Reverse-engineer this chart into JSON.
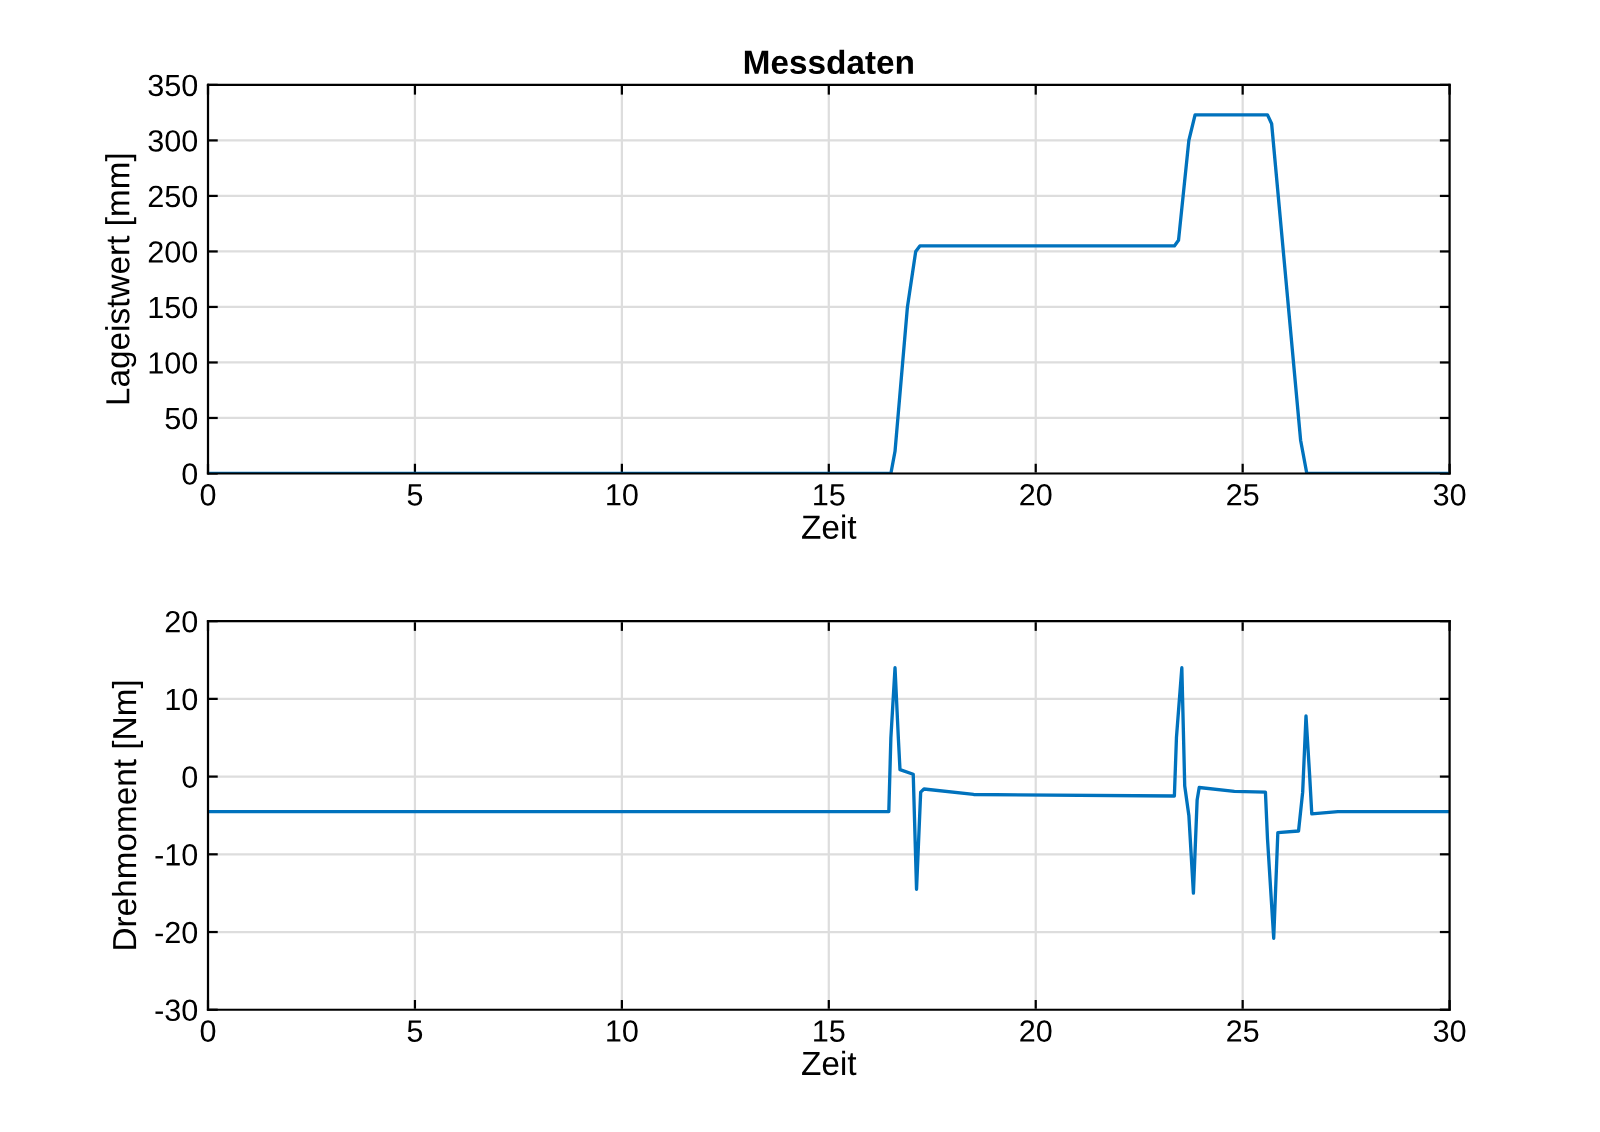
{
  "chart_data": [
    {
      "type": "line",
      "title": "Messdaten",
      "xlabel": "Zeit",
      "ylabel": "Lageistwert [mm]",
      "xlim": [
        0,
        30
      ],
      "xticks": [
        0,
        5,
        10,
        15,
        20,
        25,
        30
      ],
      "ylim": [
        0,
        350
      ],
      "yticks": [
        0,
        50,
        100,
        150,
        200,
        250,
        300,
        350
      ],
      "grid": true,
      "series": [
        {
          "color": "#0072bd",
          "x": [
            0,
            16.5,
            16.6,
            16.9,
            17.1,
            17.2,
            23.35,
            23.45,
            23.7,
            23.85,
            25.6,
            25.7,
            26.4,
            26.55,
            30
          ],
          "values": [
            0,
            0,
            20,
            150,
            200,
            205,
            205,
            210,
            300,
            323,
            323,
            315,
            30,
            0,
            0
          ]
        }
      ]
    },
    {
      "type": "line",
      "xlabel": "Zeit",
      "ylabel": "Drehmoment [Nm]",
      "xlim": [
        0,
        30
      ],
      "xticks": [
        0,
        5,
        10,
        15,
        20,
        25,
        30
      ],
      "ylim": [
        -30,
        20
      ],
      "yticks": [
        20,
        10,
        0,
        -10,
        -20,
        -30
      ],
      "grid": true,
      "series": [
        {
          "color": "#0072bd",
          "x": [
            0,
            16.45,
            16.5,
            16.6,
            16.68,
            16.72,
            17.04,
            17.12,
            17.22,
            17.3,
            18.5,
            23.35,
            23.4,
            23.53,
            23.6,
            23.7,
            23.81,
            23.9,
            23.95,
            24.8,
            25.55,
            25.6,
            25.75,
            25.85,
            26.35,
            26.45,
            26.53,
            26.62,
            26.67,
            27.3,
            30
          ],
          "values": [
            -4.5,
            -4.5,
            5,
            14,
            5,
            0.9,
            0.3,
            -14.5,
            -2,
            -1.6,
            -2.3,
            -2.5,
            5,
            14,
            -1.2,
            -5,
            -15,
            -3,
            -1.4,
            -1.9,
            -2,
            -8,
            -20.8,
            -7.2,
            -7,
            -2,
            7.8,
            0,
            -4.8,
            -4.5,
            -4.5
          ]
        }
      ]
    }
  ]
}
